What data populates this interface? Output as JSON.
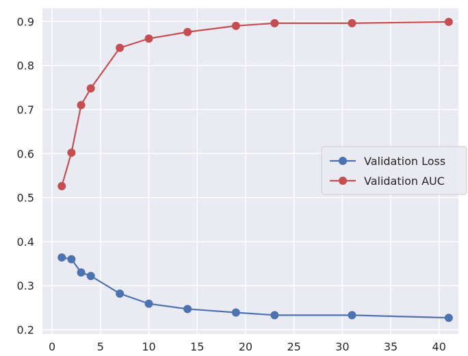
{
  "chart_data": {
    "type": "line",
    "title": "",
    "xlabel": "",
    "ylabel": "",
    "x": [
      1,
      2,
      3,
      4,
      7,
      10,
      14,
      19,
      23,
      31,
      41
    ],
    "series": [
      {
        "name": "Validation Loss",
        "color": "#4c72b0",
        "values": [
          0.364,
          0.36,
          0.33,
          0.322,
          0.282,
          0.259,
          0.247,
          0.239,
          0.233,
          0.233,
          0.227
        ]
      },
      {
        "name": "Validation AUC",
        "color": "#c44e52",
        "values": [
          0.526,
          0.602,
          0.71,
          0.748,
          0.84,
          0.861,
          0.876,
          0.89,
          0.896,
          0.896,
          0.899
        ]
      }
    ],
    "xlim": [
      -1,
      42
    ],
    "ylim": [
      0.19,
      0.93
    ],
    "x_ticks": [
      0,
      5,
      10,
      15,
      20,
      25,
      30,
      35,
      40
    ],
    "y_ticks": [
      0.2,
      0.3,
      0.4,
      0.5,
      0.6,
      0.7,
      0.8,
      0.9
    ],
    "x_tick_labels": [
      "0",
      "5",
      "10",
      "15",
      "20",
      "25",
      "30",
      "35",
      "40"
    ],
    "y_tick_labels": [
      "0.2",
      "0.3",
      "0.4",
      "0.5",
      "0.6",
      "0.7",
      "0.8",
      "0.9"
    ],
    "grid": true,
    "legend_position": "center-right",
    "style": "seaborn darkgrid",
    "plot_background": "#eaeaf2",
    "grid_color": "#ffffff"
  }
}
